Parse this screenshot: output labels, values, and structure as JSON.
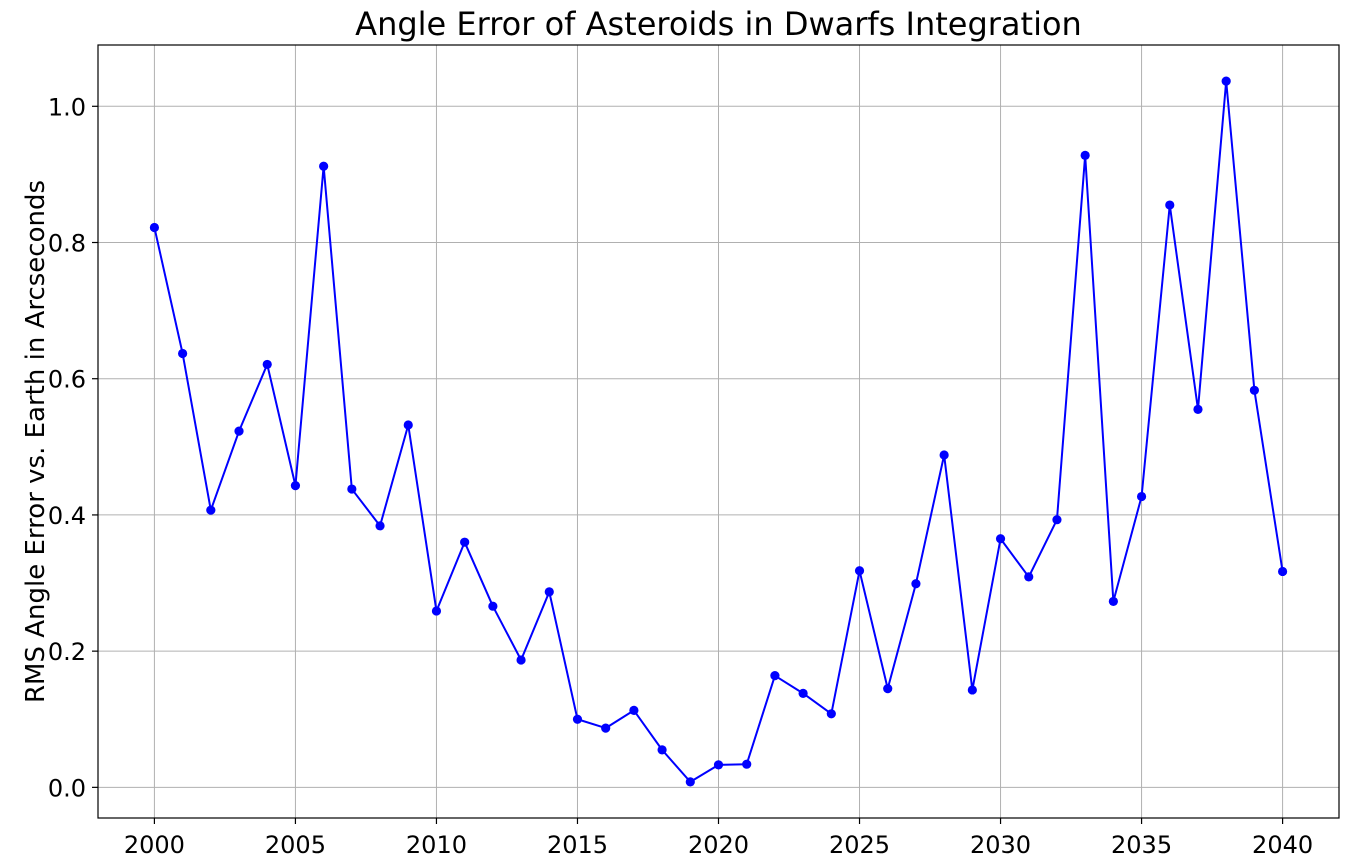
{
  "chart_data": {
    "type": "line",
    "title": "Angle Error of Asteroids in Dwarfs Integration",
    "xlabel": "",
    "ylabel": "RMS Angle Error vs. Earth in Arcseconds",
    "xlim": [
      1998,
      2042
    ],
    "ylim": [
      -0.045,
      1.09
    ],
    "xticks": [
      2000,
      2005,
      2010,
      2015,
      2020,
      2025,
      2030,
      2035,
      2040
    ],
    "yticks": [
      0.0,
      0.2,
      0.4,
      0.6,
      0.8,
      1.0
    ],
    "xtick_labels": [
      "2000",
      "2005",
      "2010",
      "2015",
      "2020",
      "2025",
      "2030",
      "2035",
      "2040"
    ],
    "ytick_labels": [
      "0.0",
      "0.2",
      "0.4",
      "0.6",
      "0.8",
      "1.0"
    ],
    "grid": true,
    "legend": "none",
    "series": [
      {
        "color": "#0000ff",
        "marker": "circle",
        "x": [
          2000,
          2001,
          2002,
          2003,
          2004,
          2005,
          2006,
          2007,
          2008,
          2009,
          2010,
          2011,
          2012,
          2013,
          2014,
          2015,
          2016,
          2017,
          2018,
          2019,
          2020,
          2021,
          2022,
          2023,
          2024,
          2025,
          2026,
          2027,
          2028,
          2029,
          2030,
          2031,
          2032,
          2033,
          2034,
          2035,
          2036,
          2037,
          2038,
          2039,
          2040
        ],
        "y": [
          0.822,
          0.637,
          0.407,
          0.523,
          0.621,
          0.443,
          0.912,
          0.438,
          0.384,
          0.532,
          0.259,
          0.36,
          0.266,
          0.187,
          0.287,
          0.1,
          0.087,
          0.113,
          0.055,
          0.008,
          0.033,
          0.034,
          0.164,
          0.138,
          0.108,
          0.318,
          0.145,
          0.299,
          0.488,
          0.143,
          0.365,
          0.309,
          0.393,
          0.928,
          0.273,
          0.427,
          0.855,
          0.555,
          1.037,
          0.583,
          0.317
        ]
      }
    ]
  }
}
